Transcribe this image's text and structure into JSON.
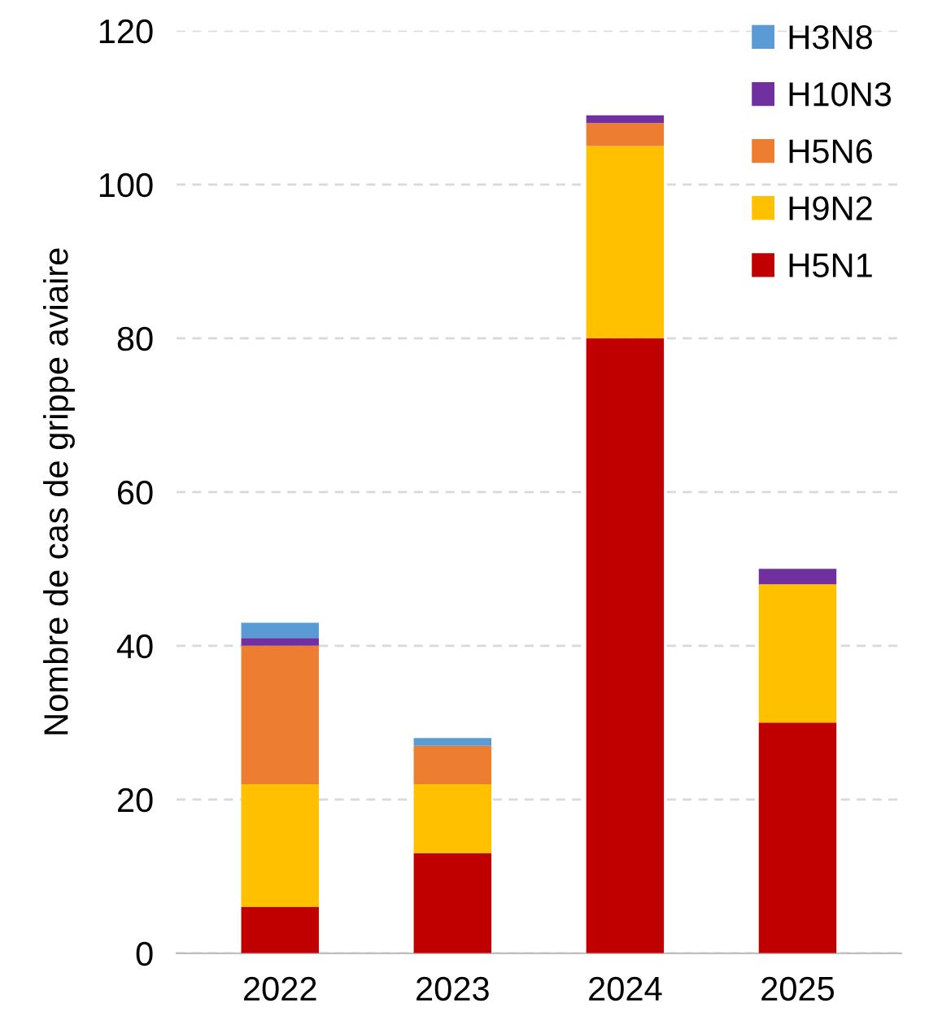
{
  "chart_data": {
    "type": "bar",
    "stacked": true,
    "ylabel": "Nombre de cas de grippe aviaire",
    "categories": [
      "2022",
      "2023",
      "2024",
      "2025"
    ],
    "series": [
      {
        "name": "H5N1",
        "color": "#c00000",
        "values": [
          6,
          13,
          80,
          30
        ]
      },
      {
        "name": "H9N2",
        "color": "#ffc000",
        "values": [
          16,
          9,
          25,
          18
        ]
      },
      {
        "name": "H5N6",
        "color": "#ed7d31",
        "values": [
          18,
          5,
          3,
          0
        ]
      },
      {
        "name": "H10N3",
        "color": "#7030a0",
        "values": [
          1,
          0,
          1,
          2
        ]
      },
      {
        "name": "H3N8",
        "color": "#5b9bd5",
        "values": [
          2,
          1,
          0,
          0
        ]
      }
    ],
    "ylim": [
      0,
      120
    ],
    "yticks": [
      0,
      20,
      40,
      60,
      80,
      100,
      120
    ],
    "grid": "y",
    "legend": "top right"
  }
}
